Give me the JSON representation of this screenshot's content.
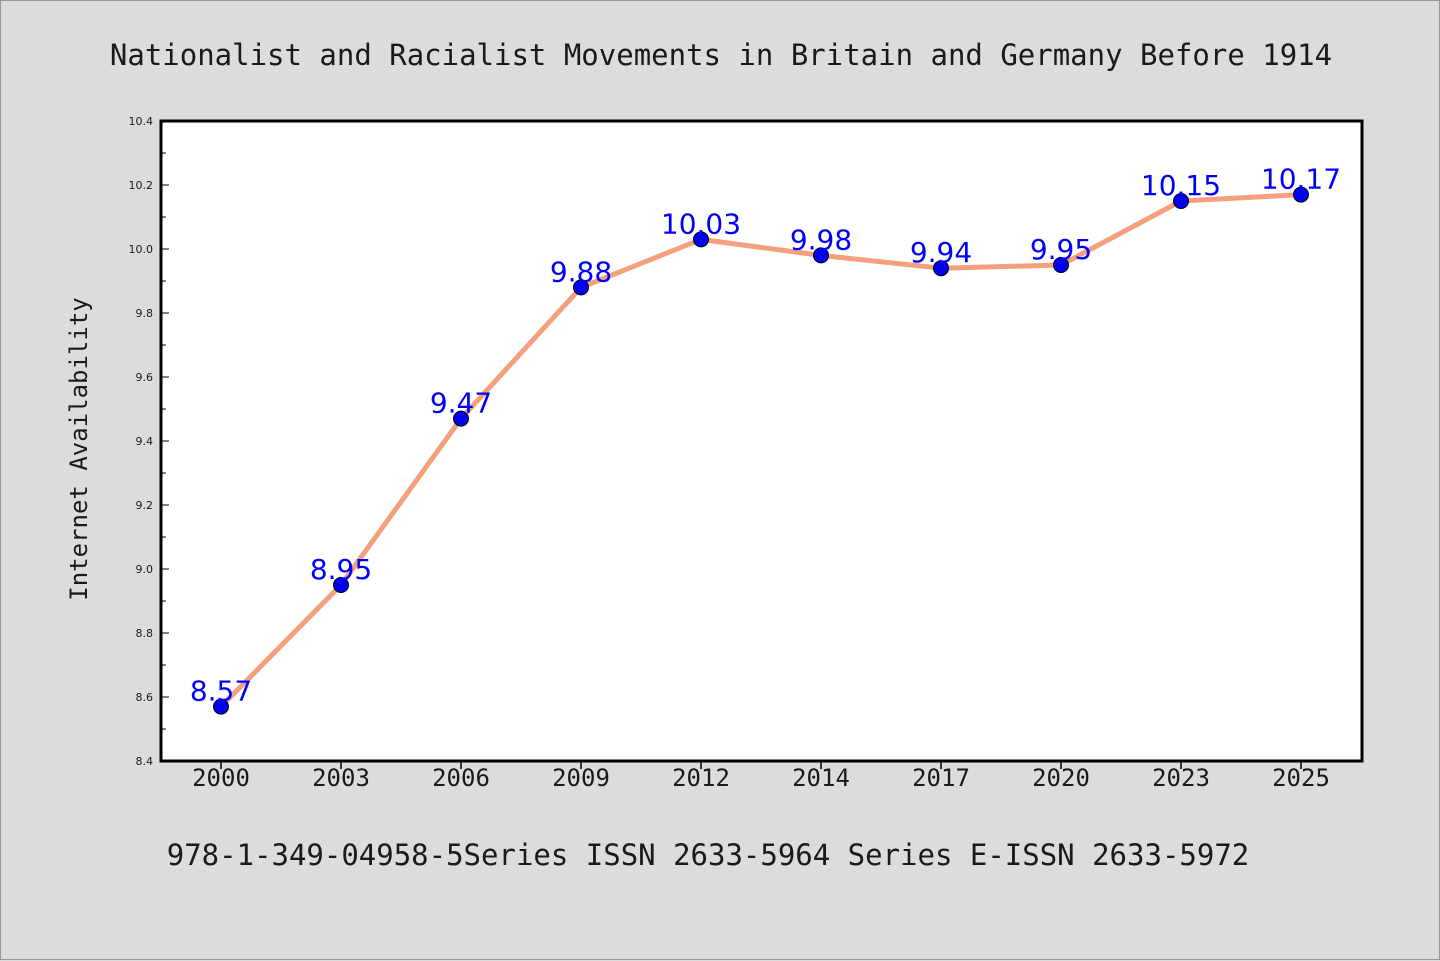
{
  "title": "Nationalist and Racialist Movements in Britain and Germany Before 1914",
  "footer": "978-1-349-04958-5Series ISSN 2633-5964 Series E-ISSN 2633-5972",
  "colors": {
    "background": "#dcdcdc",
    "plot_background": "#ffffff",
    "line": "#f4a07c",
    "marker": "#0000ee",
    "label": "#0000ff",
    "text": "#1a1a1a"
  },
  "chart_data": {
    "type": "line",
    "title": "Nationalist and Racialist Movements in Britain and Germany Before 1914",
    "xlabel": "",
    "ylabel": "Internet Availability",
    "categories": [
      "2000",
      "2003",
      "2006",
      "2009",
      "2012",
      "2014",
      "2017",
      "2020",
      "2023",
      "2025"
    ],
    "series": [
      {
        "name": "",
        "values": [
          8.57,
          8.95,
          9.47,
          9.88,
          10.03,
          9.98,
          9.94,
          9.95,
          10.15,
          10.17
        ]
      }
    ],
    "data_labels": [
      "8.57",
      "8.95",
      "9.47",
      "9.88",
      "10.03",
      "9.98",
      "9.94",
      "9.95",
      "10.15",
      "10.17"
    ],
    "ylim": [
      8.4,
      10.4
    ],
    "yticks": [
      "8.4",
      "8.6",
      "8.8",
      "9.0",
      "9.2",
      "9.4",
      "9.6",
      "9.8",
      "10.0",
      "10.2",
      "10.4"
    ],
    "grid": false,
    "legend": "none"
  }
}
